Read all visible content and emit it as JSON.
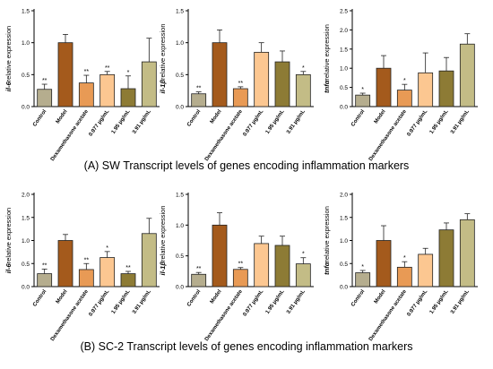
{
  "captions": {
    "a": "(A) SW  Transcript levels of genes encoding inflammation markers",
    "b": "(B) SC-2  Transcript levels of genes encoding inflammation markers"
  },
  "bar_colors": [
    "#b5ad8e",
    "#a45a1c",
    "#e89a55",
    "#fcc791",
    "#8d7b35",
    "#c3bc86"
  ],
  "chart_data": [
    {
      "type": "bar",
      "panel": "A",
      "title": "",
      "xlabel": "",
      "ylabel_gene": "il-6",
      "ylabel_rest": "relative expression",
      "ylim": [
        0,
        1.5
      ],
      "yticks": [
        "0.0",
        "0.5",
        "1.0",
        "1.5"
      ],
      "categories": [
        "Control",
        "Model",
        "Dexamethasone acetate",
        "0.977 μg/mL",
        "1.95 μg/mL",
        "3.91 μg/mL"
      ],
      "values": [
        0.27,
        1.0,
        0.37,
        0.5,
        0.28,
        0.7
      ],
      "errors": [
        0.08,
        0.13,
        0.12,
        0.05,
        0.2,
        0.37
      ],
      "significance": [
        "**",
        "",
        "**",
        "**",
        "*",
        ""
      ]
    },
    {
      "type": "bar",
      "panel": "A",
      "title": "",
      "xlabel": "",
      "ylabel_gene": "il-1β",
      "ylabel_rest": "relative expression",
      "ylim": [
        0,
        1.5
      ],
      "yticks": [
        "0.0",
        "0.5",
        "1.0",
        "1.5"
      ],
      "categories": [
        "Control",
        "Model",
        "Dexamethasone acetate",
        "0.977 μg/mL",
        "1.95 μg/mL",
        "3.91 μg/mL"
      ],
      "values": [
        0.2,
        1.0,
        0.28,
        0.85,
        0.7,
        0.5
      ],
      "errors": [
        0.03,
        0.2,
        0.03,
        0.15,
        0.17,
        0.05
      ],
      "significance": [
        "**",
        "",
        "**",
        "",
        "",
        "*"
      ]
    },
    {
      "type": "bar",
      "panel": "A",
      "title": "",
      "xlabel": "",
      "ylabel_gene": "tnfα",
      "ylabel_rest": "relative expression",
      "ylim": [
        0,
        2.5
      ],
      "yticks": [
        "0.0",
        "0.5",
        "1.0",
        "1.5",
        "2.0",
        "2.5"
      ],
      "categories": [
        "Control",
        "Model",
        "Dexamethasone acetate",
        "0.977 μg/mL",
        "1.95 μg/mL",
        "3.91 μg/mL"
      ],
      "values": [
        0.3,
        1.0,
        0.43,
        0.88,
        0.93,
        1.63
      ],
      "errors": [
        0.05,
        0.33,
        0.15,
        0.52,
        0.35,
        0.27
      ],
      "significance": [
        "*",
        "",
        "*",
        "",
        "",
        ""
      ]
    },
    {
      "type": "bar",
      "panel": "B",
      "title": "",
      "xlabel": "",
      "ylabel_gene": "il-6",
      "ylabel_rest": "relative expression",
      "ylim": [
        0,
        2.0
      ],
      "yticks": [
        "0.0",
        "0.5",
        "1.0",
        "1.5",
        "2.0"
      ],
      "categories": [
        "Control",
        "Model",
        "Dexamethasone acetate",
        "0.977 μg/mL",
        "1.95 μg/mL",
        "3.91 μg/mL"
      ],
      "values": [
        0.28,
        1.0,
        0.37,
        0.63,
        0.28,
        1.15
      ],
      "errors": [
        0.1,
        0.13,
        0.13,
        0.13,
        0.05,
        0.33
      ],
      "significance": [
        "**",
        "",
        "**",
        "*",
        "**",
        ""
      ]
    },
    {
      "type": "bar",
      "panel": "B",
      "title": "",
      "xlabel": "",
      "ylabel_gene": "il-1β",
      "ylabel_rest": "relative expression",
      "ylim": [
        0,
        1.5
      ],
      "yticks": [
        "0.0",
        "0.5",
        "1.0",
        "1.5"
      ],
      "categories": [
        "Control",
        "Model",
        "Dexamethasone acetate",
        "0.977 μg/mL",
        "1.95 μg/mL",
        "3.91 μg/mL"
      ],
      "values": [
        0.2,
        1.0,
        0.28,
        0.7,
        0.67,
        0.37
      ],
      "errors": [
        0.03,
        0.2,
        0.03,
        0.12,
        0.15,
        0.1
      ],
      "significance": [
        "**",
        "",
        "**",
        "",
        "",
        "*"
      ]
    },
    {
      "type": "bar",
      "panel": "B",
      "title": "",
      "xlabel": "",
      "ylabel_gene": "tnfα",
      "ylabel_rest": "relative expression",
      "ylim": [
        0,
        2.0
      ],
      "yticks": [
        "0.0",
        "0.5",
        "1.0",
        "1.5",
        "2.0"
      ],
      "categories": [
        "Control",
        "Model",
        "Dexamethasone acetate",
        "0.977 μg/mL",
        "1.95 μg/mL",
        "3.91 μg/mL"
      ],
      "values": [
        0.3,
        1.0,
        0.42,
        0.7,
        1.23,
        1.45
      ],
      "errors": [
        0.05,
        0.32,
        0.12,
        0.13,
        0.15,
        0.13
      ],
      "significance": [
        "*",
        "",
        "*",
        "",
        "",
        ""
      ]
    }
  ]
}
